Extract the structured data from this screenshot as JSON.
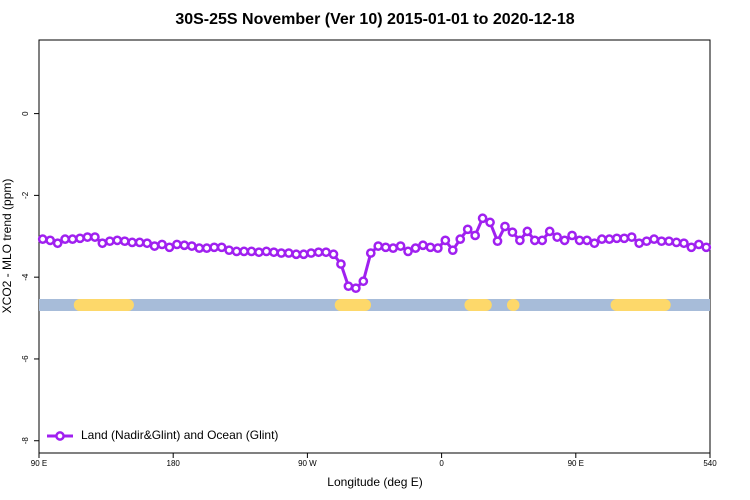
{
  "chart_data": {
    "type": "line",
    "title": "30S-25S November (Ver 10)   2015-01-01 to 2020-12-18",
    "x_label": "Longitude (deg E)",
    "y_label": "XCO2 - MLO trend (ppm)",
    "xlim": [
      90,
      540
    ],
    "ylim": [
      -8.3,
      1.8
    ],
    "xticks": [
      {
        "value": 90,
        "label": "90 E"
      },
      180,
      {
        "value": 270,
        "label": "90 W"
      },
      {
        "value": 360,
        "label": "0"
      },
      {
        "value": 450,
        "label": "90 E"
      },
      540
    ],
    "yticks": [
      0,
      -2,
      -4,
      -6,
      -8
    ],
    "legend": "bottom-left",
    "surface": {
      "y": -4.68,
      "ocean_color": "#a7bcd9",
      "land_color": "#fdd86a",
      "land": [
        [
          114,
          153
        ],
        [
          289,
          312
        ],
        [
          376,
          393
        ],
        [
          404.5,
          407
        ],
        [
          474,
          513
        ]
      ]
    },
    "x": [
      92.5,
      97.5,
      102.5,
      107.5,
      112.5,
      117.5,
      122.5,
      127.5,
      132.5,
      137.5,
      142.5,
      147.5,
      152.5,
      157.5,
      162.5,
      167.5,
      172.5,
      177.5,
      182.5,
      187.5,
      192.5,
      197.5,
      202.5,
      207.5,
      212.5,
      217.5,
      222.5,
      227.5,
      232.5,
      237.5,
      242.5,
      247.5,
      252.5,
      257.5,
      262.5,
      267.5,
      272.5,
      277.5,
      282.5,
      287.5,
      292.5,
      297.5,
      302.5,
      307.5,
      312.5,
      317.5,
      322.5,
      327.5,
      332.5,
      337.5,
      342.5,
      347.5,
      352.5,
      357.5,
      362.5,
      367.5,
      372.5,
      377.5,
      382.5,
      387.5,
      392.5,
      397.5,
      402.5,
      407.5,
      412.5,
      417.5,
      422.5,
      427.5,
      432.5,
      437.5,
      442.5,
      447.5,
      452.5,
      457.5,
      462.5,
      467.5,
      472.5,
      477.5,
      482.5,
      487.5,
      492.5,
      497.5,
      502.5,
      507.5,
      512.5,
      517.5,
      522.5,
      527.5,
      532.5,
      537.5
    ],
    "series": [
      {
        "name": "Land (Nadir&Glint) and Ocean (Glint)",
        "color": "#a020f0",
        "values": [
          -3.07,
          -3.1,
          -3.17,
          -3.07,
          -3.07,
          -3.05,
          -3.02,
          -3.02,
          -3.17,
          -3.12,
          -3.1,
          -3.12,
          -3.15,
          -3.15,
          -3.17,
          -3.24,
          -3.2,
          -3.27,
          -3.2,
          -3.22,
          -3.24,
          -3.29,
          -3.29,
          -3.27,
          -3.27,
          -3.34,
          -3.37,
          -3.37,
          -3.37,
          -3.39,
          -3.37,
          -3.39,
          -3.41,
          -3.41,
          -3.44,
          -3.44,
          -3.41,
          -3.39,
          -3.39,
          -3.44,
          -3.68,
          -4.22,
          -4.27,
          -4.1,
          -3.41,
          -3.24,
          -3.27,
          -3.29,
          -3.24,
          -3.37,
          -3.29,
          -3.22,
          -3.27,
          -3.29,
          -3.1,
          -3.34,
          -3.07,
          -2.83,
          -2.98,
          -2.56,
          -2.66,
          -3.12,
          -2.76,
          -2.9,
          -3.1,
          -2.88,
          -3.1,
          -3.1,
          -2.88,
          -3.02,
          -3.1,
          -2.98,
          -3.1,
          -3.1,
          -3.17,
          -3.07,
          -3.07,
          -3.05,
          -3.05,
          -3.02,
          -3.17,
          -3.12,
          -3.07,
          -3.12,
          -3.12,
          -3.15,
          -3.17,
          -3.27,
          -3.2,
          -3.27
        ]
      }
    ]
  }
}
